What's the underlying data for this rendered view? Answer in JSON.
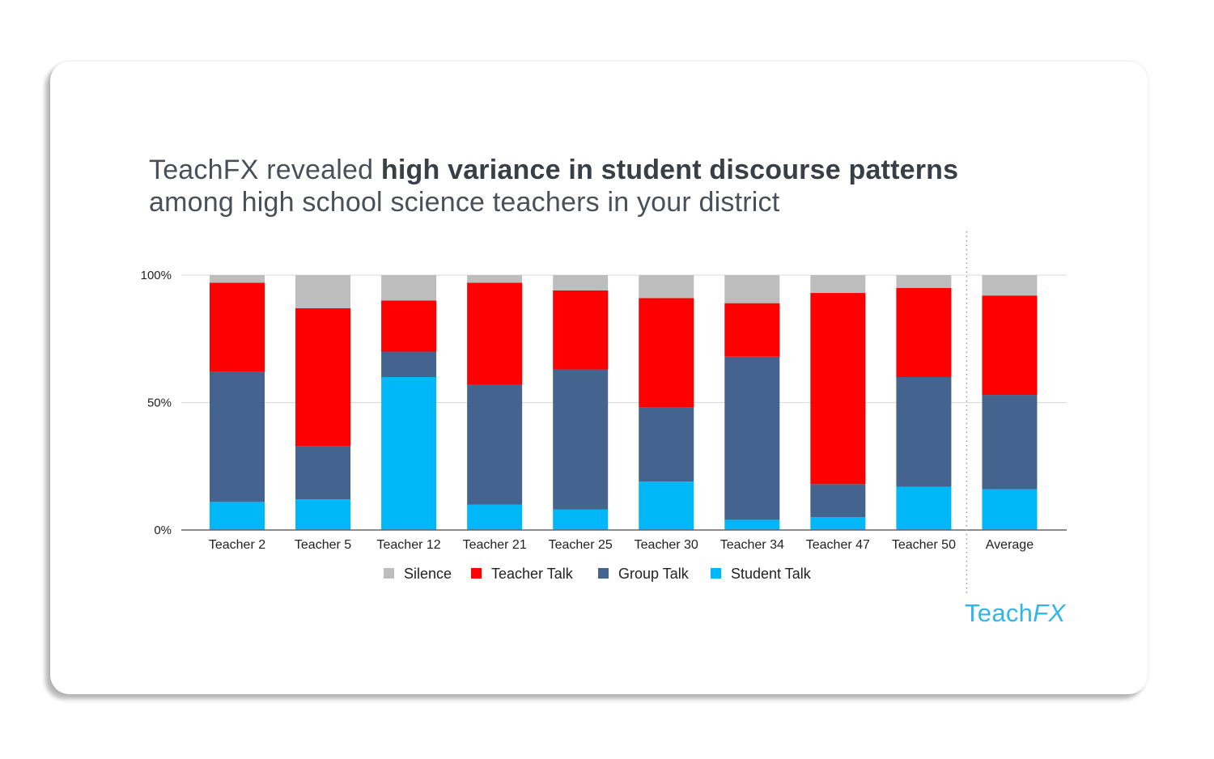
{
  "title": {
    "part1": "TeachFX revealed ",
    "part2": "high variance in student discourse patterns",
    "part3": "among high school science teachers in your district"
  },
  "logo": {
    "part1": "Teach",
    "part2": "FX"
  },
  "colors": {
    "silence": "#bdbdbd",
    "teacher_talk": "#fe0000",
    "group_talk": "#44638f",
    "student_talk": "#00b8f8",
    "gridline": "#d9d9d9",
    "axis": "#666666",
    "logo": "#33b5ea"
  },
  "chart_data": {
    "type": "bar",
    "stacked": true,
    "categories": [
      "Teacher 2",
      "Teacher 5",
      "Teacher 12",
      "Teacher 21",
      "Teacher 25",
      "Teacher 30",
      "Teacher 34",
      "Teacher 47",
      "Teacher 50",
      "Average"
    ],
    "series": [
      {
        "name": "Student Talk",
        "color_key": "student_talk",
        "values": [
          11,
          12,
          60,
          10,
          8,
          19,
          4,
          5,
          17,
          16
        ]
      },
      {
        "name": "Group Talk",
        "color_key": "group_talk",
        "values": [
          51,
          21,
          10,
          47,
          55,
          29,
          64,
          13,
          43,
          37
        ]
      },
      {
        "name": "Teacher Talk",
        "color_key": "teacher_talk",
        "values": [
          35,
          54,
          20,
          40,
          31,
          43,
          21,
          75,
          35,
          39
        ]
      },
      {
        "name": "Silence",
        "color_key": "silence",
        "values": [
          3,
          13,
          10,
          3,
          6,
          9,
          11,
          7,
          5,
          8
        ]
      }
    ],
    "legend": [
      {
        "name": "Silence",
        "color_key": "silence"
      },
      {
        "name": "Teacher Talk",
        "color_key": "teacher_talk"
      },
      {
        "name": "Group Talk",
        "color_key": "group_talk"
      },
      {
        "name": "Student Talk",
        "color_key": "student_talk"
      }
    ],
    "y_ticks": [
      {
        "value": 100,
        "label": "100%"
      },
      {
        "value": 50,
        "label": "50%"
      },
      {
        "value": 0,
        "label": "0%"
      }
    ],
    "ylim": [
      0,
      100
    ],
    "separator_before": "Average",
    "legend_position": "bottom-center",
    "grid": true,
    "xlabel": "",
    "ylabel": ""
  }
}
